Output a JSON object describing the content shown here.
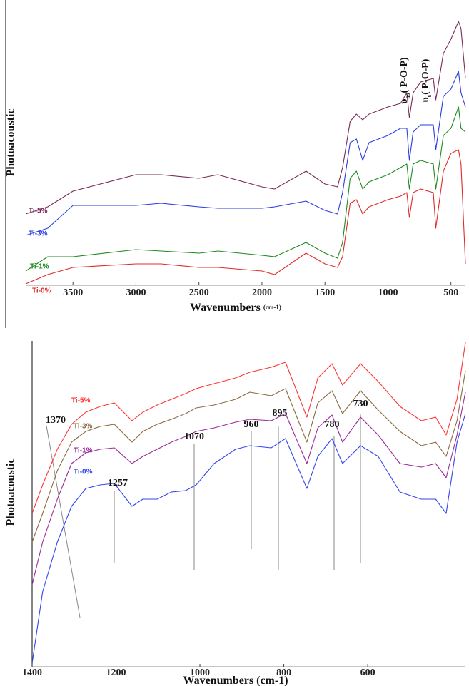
{
  "chart_data": [
    {
      "type": "line",
      "ylabel": "Photoacoustic",
      "xlabel": [
        "Wavenumbers",
        "(cm-1)"
      ],
      "xlim": [
        3875,
        385
      ],
      "ylim": [
        0,
        100
      ],
      "xticks": [
        3500,
        3000,
        2500,
        2000,
        1500,
        1000,
        500
      ],
      "x": [
        3875,
        3700,
        3500,
        3000,
        2800,
        2500,
        2350,
        2000,
        1900,
        1650,
        1500,
        1400,
        1360,
        1300,
        1250,
        1200,
        1150,
        1000,
        900,
        850,
        830,
        800,
        740,
        640,
        620,
        560,
        500,
        440,
        420,
        385
      ],
      "series": [
        {
          "name": "Ti-5%",
          "color": "#7b2a5a",
          "values": [
            25,
            27.5,
            33,
            38.75,
            38.75,
            37.5,
            38.75,
            34.5,
            33.75,
            40,
            35.5,
            34.5,
            41.25,
            57.5,
            60,
            58,
            60,
            62.5,
            63.75,
            67.5,
            58.75,
            67.5,
            71.25,
            72.5,
            65,
            81.25,
            86.25,
            92.5,
            90,
            72.5
          ]
        },
        {
          "name": "Ti-3%",
          "color": "#2a3de0",
          "values": [
            17.5,
            20,
            28,
            28,
            28.75,
            27.5,
            27,
            27,
            27.5,
            29.5,
            26.25,
            25,
            32.5,
            50,
            51.25,
            43.75,
            50,
            52.5,
            55,
            55,
            43.75,
            53.75,
            56.25,
            56.25,
            47.5,
            66.25,
            68.75,
            75,
            67.5,
            62.5
          ]
        },
        {
          "name": "Ti-1%",
          "color": "#1e8a1e",
          "values": [
            5,
            10,
            10,
            12.5,
            12,
            11.25,
            12,
            10.5,
            10,
            15,
            11.25,
            9.5,
            15,
            37.5,
            40,
            33.75,
            36.25,
            38.75,
            41.25,
            42.5,
            33.75,
            42.5,
            43.75,
            42.5,
            33.75,
            52.5,
            55,
            62.5,
            55,
            53.75
          ]
        },
        {
          "name": "Ti-0%",
          "color": "#e02a2a",
          "values": [
            0.5,
            3.75,
            6.25,
            7.5,
            7.5,
            6.25,
            6.25,
            5,
            3.75,
            11.25,
            7.5,
            6.25,
            10,
            28.75,
            30,
            25,
            27.5,
            30,
            31.25,
            32.5,
            23.75,
            32.5,
            33.75,
            32.5,
            20,
            40,
            46.25,
            47.5,
            42.5,
            7.5
          ]
        }
      ],
      "annotations": [
        {
          "parts": [
            "υ",
            "as",
            "( P-O-P)"
          ]
        },
        {
          "parts": [
            "υ",
            "s",
            "( P-O-P)"
          ]
        }
      ]
    },
    {
      "type": "line",
      "ylabel": "Photoacoustic",
      "xlabel": [
        "Wavenumbers (cm-1)"
      ],
      "xlim": [
        1400,
        367
      ],
      "ylim": [
        0,
        460
      ],
      "xticks": [
        1400,
        1200,
        1000,
        800,
        600
      ],
      "x": [
        1400,
        1375,
        1340,
        1306,
        1272,
        1238,
        1204,
        1162,
        1136,
        1102,
        1068,
        1034,
        1009,
        966,
        915,
        881,
        830,
        796,
        745,
        719,
        685,
        660,
        617,
        575,
        523,
        472,
        438,
        413,
        387,
        367
      ],
      "series": [
        {
          "name": "Ti-5%",
          "color": "#ff3333",
          "values": [
            215,
            255,
            305,
            340,
            357,
            365,
            370,
            345,
            357,
            367,
            375,
            383,
            390,
            397,
            405,
            413,
            420,
            427,
            350,
            405,
            425,
            395,
            425,
            400,
            365,
            345,
            350,
            325,
            375,
            455
          ]
        },
        {
          "name": "Ti-3%",
          "color": "#8b6a40",
          "values": [
            175,
            215,
            275,
            315,
            330,
            337,
            340,
            315,
            330,
            340,
            347,
            355,
            363,
            367,
            375,
            385,
            380,
            390,
            315,
            370,
            387,
            355,
            387,
            360,
            330,
            310,
            315,
            295,
            345,
            415
          ]
        },
        {
          "name": "Ti-1%",
          "color": "#9a2a9a",
          "values": [
            115,
            175,
            235,
            285,
            300,
            305,
            307,
            285,
            295,
            305,
            315,
            323,
            330,
            335,
            343,
            347,
            345,
            355,
            285,
            335,
            353,
            315,
            350,
            325,
            285,
            280,
            285,
            265,
            325,
            385
          ]
        },
        {
          "name": "Ti-0%",
          "color": "#3344ee",
          "values": [
            5,
            105,
            175,
            225,
            250,
            255,
            257,
            225,
            235,
            235,
            245,
            247,
            255,
            285,
            305,
            310,
            307,
            320,
            250,
            295,
            320,
            285,
            310,
            295,
            245,
            235,
            235,
            215,
            315,
            355
          ]
        }
      ],
      "annotations": [
        {
          "parts": [
            "1370"
          ]
        },
        {
          "parts": [
            "1257"
          ]
        },
        {
          "parts": [
            "1070"
          ]
        },
        {
          "parts": [
            "960"
          ]
        },
        {
          "parts": [
            "895"
          ]
        },
        {
          "parts": [
            "780"
          ]
        },
        {
          "parts": [
            "730"
          ]
        }
      ]
    }
  ]
}
